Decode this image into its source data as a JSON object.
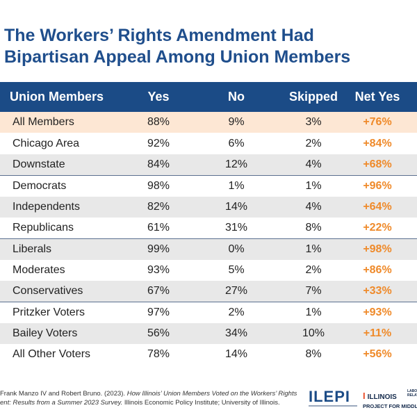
{
  "title_line1": "The Workers’ Rights Amendment Had",
  "title_line2": "Bipartisan Appeal Among Union Members",
  "colors": {
    "title": "#1f4e8c",
    "header_bg": "#1b4b86",
    "net_yes": "#ef8a2a",
    "highlight": "#fde7d4",
    "alt_row": "#e8e8e8"
  },
  "chart_data": {
    "type": "table",
    "title": "The Workers’ Rights Amendment Had Bipartisan Appeal Among Union Members",
    "columns": [
      "Union Members",
      "Yes",
      "No",
      "Skipped",
      "Net Yes"
    ],
    "rows": [
      [
        "All Members",
        "88%",
        "9%",
        "3%",
        "+76%"
      ],
      [
        "Chicago Area",
        "92%",
        "6%",
        "2%",
        "+84%"
      ],
      [
        "Downstate",
        "84%",
        "12%",
        "4%",
        "+68%"
      ],
      [
        "Democrats",
        "98%",
        "1%",
        "1%",
        "+96%"
      ],
      [
        "Independents",
        "82%",
        "14%",
        "4%",
        "+64%"
      ],
      [
        "Republicans",
        "61%",
        "31%",
        "8%",
        "+22%"
      ],
      [
        "Liberals",
        "99%",
        "0%",
        "1%",
        "+98%"
      ],
      [
        "Moderates",
        "93%",
        "5%",
        "2%",
        "+86%"
      ],
      [
        "Conservatives",
        "67%",
        "27%",
        "7%",
        "+33%"
      ],
      [
        "Pritzker Voters",
        "97%",
        "2%",
        "1%",
        "+93%"
      ],
      [
        "Bailey Voters",
        "56%",
        "34%",
        "10%",
        "+11%"
      ],
      [
        "All Other Voters",
        "78%",
        "14%",
        "8%",
        "+56%"
      ]
    ]
  },
  "footer": {
    "citation_line1_plain": "Frank Manzo IV and Robert Bruno. (2023). ",
    "citation_line1_italic": "How Illinois’ Union Members Voted on the Workers’ Rights",
    "citation_line2_italic": "ent: Results from a Summer 2023 Survey.",
    "citation_line2_plain": " Illinois Economic Policy Institute; University of Illinois.",
    "logo_ilepi": "ILEPI",
    "logo_illinois": "ILLINOIS",
    "logo_labor": "LABOR RELATI",
    "logo_illinois_sub": "PROJECT FOR MIDDLE CLA"
  }
}
